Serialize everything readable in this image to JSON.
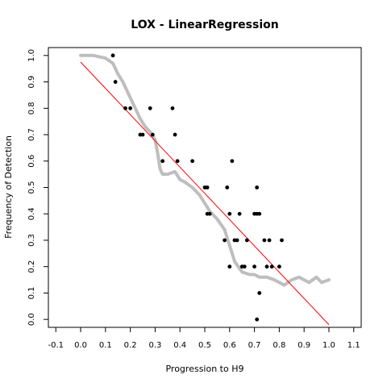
{
  "chart_data": {
    "type": "scatter",
    "title": "LOX - LinearRegression",
    "xlabel": "Progression to H9",
    "ylabel": "Frequency of Detection",
    "xlim": [
      -0.13,
      1.13
    ],
    "ylim": [
      -0.03,
      1.03
    ],
    "xticks": [
      -0.1,
      0.0,
      0.1,
      0.2,
      0.3,
      0.4,
      0.5,
      0.6,
      0.7,
      0.8,
      0.9,
      1.0,
      1.1
    ],
    "xtick_labels": [
      "-0.1",
      "0.0",
      "0.1",
      "0.2",
      "0.3",
      "0.4",
      "0.5",
      "0.6",
      "0.7",
      "0.8",
      "0.9",
      "1.0",
      "1.1"
    ],
    "yticks": [
      0.0,
      0.1,
      0.2,
      0.3,
      0.4,
      0.5,
      0.6,
      0.7,
      0.8,
      0.9,
      1.0
    ],
    "ytick_labels": [
      "0.0",
      "0.1",
      "0.2",
      "0.3",
      "0.4",
      "0.5",
      "0.6",
      "0.7",
      "0.8",
      "0.9",
      "1.0"
    ],
    "grid": false,
    "series": [
      {
        "kind": "curve",
        "color": "#bebebe",
        "x": [
          0.0,
          0.05,
          0.1,
          0.13,
          0.15,
          0.17,
          0.2,
          0.22,
          0.24,
          0.26,
          0.28,
          0.3,
          0.31,
          0.32,
          0.33,
          0.35,
          0.38,
          0.4,
          0.42,
          0.45,
          0.48,
          0.5,
          0.52,
          0.55,
          0.58,
          0.6,
          0.62,
          0.65,
          0.68,
          0.7,
          0.72,
          0.75,
          0.78,
          0.8,
          0.82,
          0.85,
          0.88,
          0.9,
          0.92,
          0.95,
          0.97,
          1.0
        ],
        "y": [
          1.0,
          1.0,
          0.99,
          0.97,
          0.93,
          0.9,
          0.84,
          0.8,
          0.76,
          0.73,
          0.71,
          0.68,
          0.63,
          0.57,
          0.55,
          0.55,
          0.56,
          0.53,
          0.52,
          0.5,
          0.47,
          0.44,
          0.41,
          0.38,
          0.34,
          0.28,
          0.22,
          0.18,
          0.17,
          0.17,
          0.16,
          0.16,
          0.15,
          0.14,
          0.13,
          0.15,
          0.16,
          0.15,
          0.14,
          0.16,
          0.14,
          0.15
        ]
      },
      {
        "kind": "points",
        "color": "#000000",
        "x": [
          0.13,
          0.14,
          0.18,
          0.2,
          0.24,
          0.25,
          0.28,
          0.29,
          0.33,
          0.37,
          0.38,
          0.39,
          0.45,
          0.5,
          0.51,
          0.51,
          0.52,
          0.58,
          0.59,
          0.6,
          0.6,
          0.61,
          0.62,
          0.63,
          0.64,
          0.65,
          0.66,
          0.67,
          0.7,
          0.7,
          0.71,
          0.71,
          0.71,
          0.72,
          0.72,
          0.74,
          0.75,
          0.76,
          0.77,
          0.8,
          0.81
        ],
        "y": [
          1.0,
          0.9,
          0.8,
          0.8,
          0.7,
          0.7,
          0.8,
          0.7,
          0.6,
          0.8,
          0.7,
          0.6,
          0.6,
          0.5,
          0.4,
          0.5,
          0.4,
          0.3,
          0.5,
          0.4,
          0.2,
          0.6,
          0.3,
          0.3,
          0.4,
          0.2,
          0.2,
          0.3,
          0.4,
          0.2,
          0.0,
          0.4,
          0.5,
          0.4,
          0.1,
          0.3,
          0.2,
          0.3,
          0.2,
          0.2,
          0.3
        ]
      },
      {
        "kind": "line",
        "color": "#ff0000",
        "x": [
          0.0,
          1.0
        ],
        "y": [
          0.975,
          -0.02
        ]
      }
    ]
  }
}
